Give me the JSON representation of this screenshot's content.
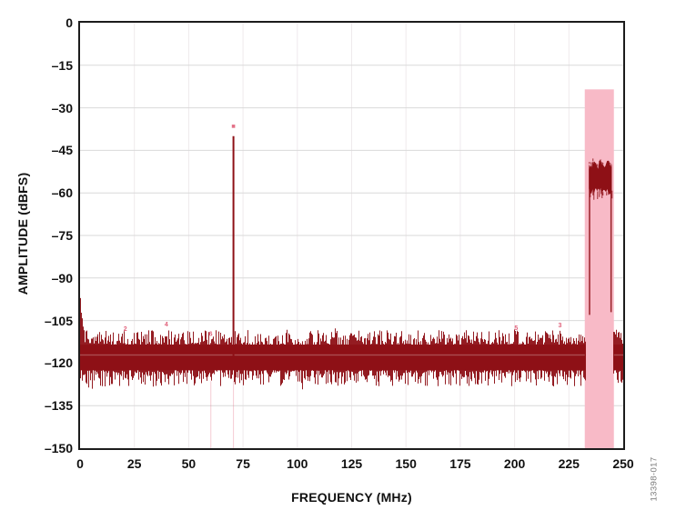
{
  "figure": {
    "id_label": "13398-017"
  },
  "chart_data": {
    "type": "line",
    "title": "",
    "xlabel": "FREQUENCY (MHz)",
    "ylabel": "AMPLITUDE (dBFS)",
    "xlim": [
      0,
      250
    ],
    "ylim": [
      -150,
      0
    ],
    "x_ticks": [
      "0",
      "25",
      "50",
      "75",
      "100",
      "125",
      "150",
      "175",
      "200",
      "225",
      "250"
    ],
    "x_tick_values": [
      0,
      25,
      50,
      75,
      100,
      125,
      150,
      175,
      200,
      225,
      250
    ],
    "y_ticks": [
      "0",
      "–15",
      "–30",
      "–45",
      "–60",
      "–75",
      "–90",
      "–105",
      "–120",
      "–135",
      "–150"
    ],
    "y_tick_values": [
      0,
      -15,
      -30,
      -45,
      -60,
      -75,
      -90,
      -105,
      -120,
      -135,
      -150
    ],
    "grid": true,
    "legend": "none",
    "series": {
      "fundamental_tone": {
        "freq_mhz": 70.6,
        "peak_dbfs": -40,
        "marker_dbfs": -36.5
      },
      "noise_floor": {
        "mean_dbfs": -118,
        "fuzz_top_dbfs": -108,
        "core_top_dbfs": -113.5,
        "core_bottom_dbfs": -122.5,
        "fuzz_bottom_dbfs": -129,
        "dc_bump_dbfs": -97
      },
      "shaped_noise_hump": {
        "start_mhz": 234.2,
        "end_mhz": 244.7,
        "top_dbfs": -49.5,
        "body_bottom_dbfs": -59,
        "edge_bottom_dbfs": -103
      },
      "highlight_band": {
        "start_mhz": 232.3,
        "end_mhz": 245.7,
        "top_dbfs": -23.5,
        "bottom_dbfs": -150
      }
    },
    "spur_markers": [
      {
        "label": "2",
        "freq_mhz": 20.8,
        "dbfs": -108.0
      },
      {
        "label": "4",
        "freq_mhz": 39.7,
        "dbfs": -106.4
      },
      {
        "label": "6",
        "freq_mhz": 60.1,
        "dbfs": -109.8
      },
      {
        "label": "5",
        "freq_mhz": 200.7,
        "dbfs": -107.7
      },
      {
        "label": "3",
        "freq_mhz": 220.9,
        "dbfs": -106.8
      }
    ],
    "colors": {
      "trace": "#8e1016",
      "band": "#f8bac7",
      "marker": "#e0607a",
      "grid_h": "#d9d9d9",
      "grid_v": "#efeaec",
      "axis": "#1c1c1c",
      "fig_id": "#7b7b7b"
    }
  }
}
